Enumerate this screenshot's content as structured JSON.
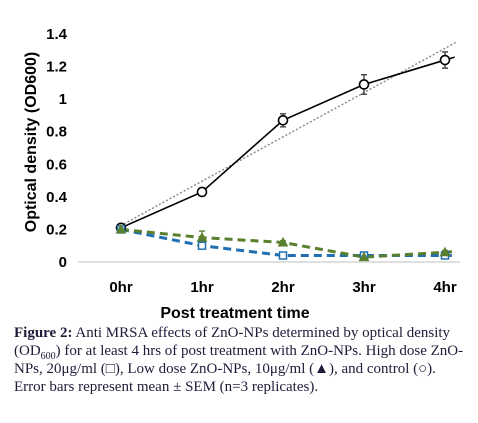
{
  "chart_data": {
    "type": "line",
    "categories": [
      "0hr",
      "1hr",
      "2hr",
      "3hr",
      "4hr"
    ],
    "xlabel": "Post treatment time",
    "ylabel": "Optical density (OD600)",
    "ylim": [
      0,
      1.4
    ],
    "yticks": [
      "0",
      "0.2",
      "0.4",
      "0.6",
      "0.8",
      "1",
      "1.2",
      "1.4"
    ],
    "grid": false,
    "series": [
      {
        "values": [
          0.21,
          0.43,
          0.87,
          1.09,
          1.24
        ],
        "errors": [
          0.01,
          0.02,
          0.04,
          0.06,
          0.05
        ],
        "marker": "circle",
        "line": "solid",
        "color": "#000000",
        "trendline": true,
        "trendline_color": "#8c8c8c"
      },
      {
        "values": [
          0.2,
          0.1,
          0.04,
          0.04,
          0.04
        ],
        "errors": [
          0.01,
          0.01,
          0.01,
          0.005,
          0.005
        ],
        "marker": "square",
        "line": "dashed",
        "color": "#1f6fb2"
      },
      {
        "values": [
          0.2,
          0.15,
          0.12,
          0.03,
          0.06
        ],
        "errors": [
          0.01,
          0.04,
          0.01,
          0.01,
          0.01
        ],
        "marker": "triangle",
        "line": "dashed",
        "color": "#5a7f2e"
      }
    ]
  },
  "caption": {
    "label": "Figure 2:",
    "text_before_sub": " Anti MRSA effects of ZnO-NPs determined by optical density (OD",
    "sub": "600",
    "text_after_sub": ") for at least 4 hrs of post treatment with ZnO-NPs. High dose ZnO-NPs, 20μg/ml (□), Low dose ZnO-NPs, 10μg/ml (▲), and control (○). Error bars represent mean ± SEM (n=3 replicates)."
  }
}
